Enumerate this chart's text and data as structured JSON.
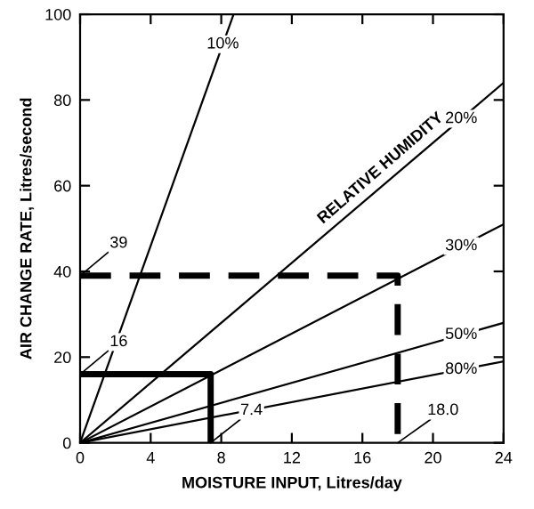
{
  "chart_data": {
    "type": "line",
    "xlabel": "MOISTURE INPUT, Litres/day",
    "ylabel": "AIR CHANGE RATE, Litres/second",
    "xlim": [
      0,
      24
    ],
    "ylim": [
      0,
      100
    ],
    "xticks": [
      0,
      4,
      8,
      12,
      16,
      20,
      24
    ],
    "yticks": [
      0,
      20,
      40,
      60,
      80,
      100
    ],
    "grid": false,
    "marker": "none",
    "series": [
      {
        "name": "10%",
        "color": "#000000",
        "x": [
          0,
          8.7
        ],
        "values": [
          0,
          100
        ]
      },
      {
        "name": "20%",
        "color": "#000000",
        "x": [
          0,
          24
        ],
        "values": [
          0,
          84
        ]
      },
      {
        "name": "30%",
        "color": "#000000",
        "x": [
          0,
          24
        ],
        "values": [
          0,
          51
        ]
      },
      {
        "name": "50%",
        "color": "#000000",
        "x": [
          0,
          24
        ],
        "values": [
          0,
          28
        ]
      },
      {
        "name": "80%",
        "color": "#000000",
        "x": [
          0,
          24
        ],
        "values": [
          0,
          19
        ]
      },
      {
        "color": "#000000",
        "x": [
          0,
          7.4,
          7.4
        ],
        "values": [
          16,
          16,
          0
        ],
        "line_style": "solid"
      },
      {
        "color": "#000000",
        "x": [
          0,
          18,
          18
        ],
        "values": [
          39,
          39,
          0
        ],
        "line_style": "dashed"
      }
    ],
    "annotations": [
      {
        "text": "39",
        "x": 0,
        "y": 39
      },
      {
        "text": "16",
        "x": 0,
        "y": 16
      },
      {
        "text": "7.4",
        "x": 7.4,
        "y": 0
      },
      {
        "text": "18.0",
        "x": 18,
        "y": 0
      },
      "RELATIVE HUMIDITY"
    ]
  }
}
